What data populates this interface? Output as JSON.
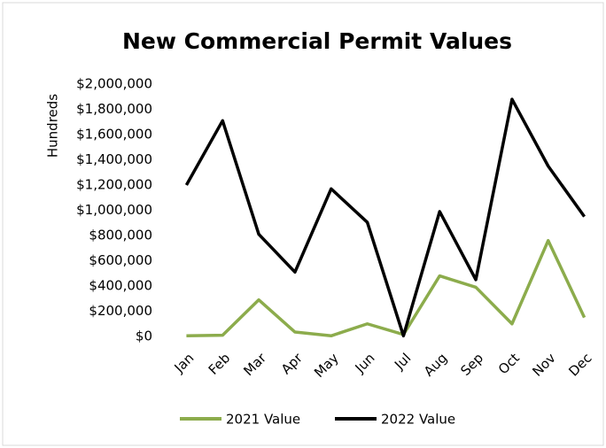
{
  "chart_data": {
    "type": "line",
    "title": "New Commercial Permit Values",
    "y_axis_label": "Hundreds",
    "categories": [
      "Jan",
      "Feb",
      "Mar",
      "Apr",
      "May",
      "Jun",
      "Jul",
      "Aug",
      "Sep",
      "Oct",
      "Nov",
      "Dec"
    ],
    "series": [
      {
        "name": "2021 Value",
        "color": "#8cac4c",
        "values": [
          5000,
          10000,
          290000,
          35000,
          5000,
          100000,
          15000,
          480000,
          390000,
          100000,
          760000,
          150000
        ]
      },
      {
        "name": "2022 Value",
        "color": "#000000",
        "values": [
          1200000,
          1710000,
          810000,
          510000,
          1170000,
          905000,
          5000,
          990000,
          450000,
          1880000,
          1350000,
          950000
        ]
      }
    ],
    "ylim": [
      0,
      2000000
    ],
    "yticks": [
      {
        "value": 0,
        "label": "$0"
      },
      {
        "value": 200000,
        "label": "$200,000"
      },
      {
        "value": 400000,
        "label": "$400,000"
      },
      {
        "value": 600000,
        "label": "$600,000"
      },
      {
        "value": 800000,
        "label": "$800,000"
      },
      {
        "value": 1000000,
        "label": "$1,000,000"
      },
      {
        "value": 1200000,
        "label": "$1,200,000"
      },
      {
        "value": 1400000,
        "label": "$1,400,000"
      },
      {
        "value": 1600000,
        "label": "$1,600,000"
      },
      {
        "value": 1800000,
        "label": "$1,800,000"
      },
      {
        "value": 2000000,
        "label": "$2,000,000"
      }
    ],
    "grid": false,
    "legend": "bottom"
  }
}
